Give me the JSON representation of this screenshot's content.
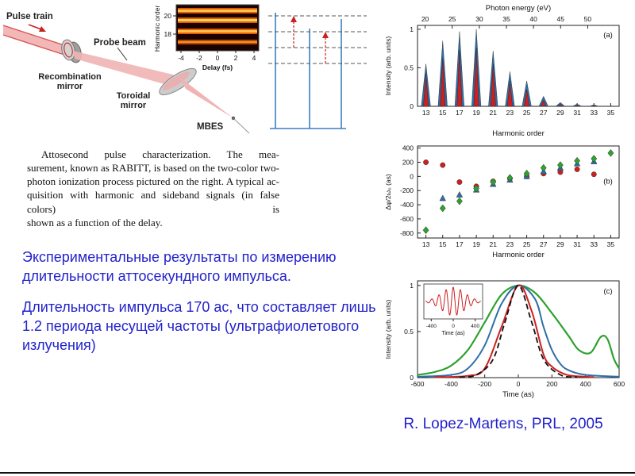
{
  "colors": {
    "text_blue": "#2222cc",
    "chart_blue": "#2e6fa8",
    "chart_red": "#cc2020",
    "chart_green": "#2fa12f",
    "beam_pink": "#f0b4b4",
    "mirror_gray": "#cccccc",
    "level_blue": "#3a7fc1",
    "stripe_orange": "#e05a00"
  },
  "diagram": {
    "labels": {
      "pulse_train": "Pulse train",
      "probe_beam": "Probe beam",
      "recombination_1": "Recombination",
      "recombination_2": "mirror",
      "toroidal_1": "Toroidal",
      "toroidal_2": "mirror",
      "mbes": "MBES"
    },
    "inset": {
      "ylabel": "Harmonic order",
      "xlabel": "Delay (fs)",
      "yticks": [
        "20",
        "18"
      ],
      "xticks": [
        "-4",
        "-2",
        "0",
        "2",
        "4"
      ]
    }
  },
  "caption": {
    "lines": [
      "Attosecond pulse characterization. The mea-",
      "surement, known as RABITT, is based on the two-color two-",
      "photon ionization process pictured on the right. A typical ac-",
      "quisition with harmonic and sideband signals (in false colors) is",
      "shown as a function of the delay."
    ]
  },
  "body_text": {
    "paragraph_1": "Экспериментальные результаты по измерению длительности аттосекундного импульса.",
    "paragraph_2": "Длительность импульса 170 ас, что составляет лишь 1.2 периода несущей частоты (ультрафиолетового излучения)"
  },
  "reference": "R. Lopez-Martens, PRL, 2005",
  "chart_data": [
    {
      "id": "a",
      "type": "bar",
      "label": "(a)",
      "xlabel": "Harmonic order",
      "ylabel": "Intensity (arb. units)",
      "top_xlabel": "Photon energy (eV)",
      "top_ticks": [
        20,
        25,
        30,
        35,
        40,
        45,
        50
      ],
      "ev_per_harmonic": 1.55,
      "xlim": [
        12,
        36
      ],
      "ylim": [
        0,
        1.05
      ],
      "xticks": [
        13,
        15,
        17,
        19,
        21,
        23,
        25,
        27,
        29,
        31,
        33,
        35
      ],
      "yticks": [
        0,
        0.5,
        1
      ],
      "series": [
        {
          "name": "harmonic-peaks",
          "color": "#2e6fa8",
          "peaks": [
            [
              13,
              0.55
            ],
            [
              15,
              0.85
            ],
            [
              17,
              0.97
            ],
            [
              19,
              1.0
            ],
            [
              21,
              0.72
            ],
            [
              23,
              0.45
            ],
            [
              25,
              0.33
            ],
            [
              27,
              0.13
            ],
            [
              29,
              0.05
            ],
            [
              31,
              0.03
            ],
            [
              33,
              0.02
            ]
          ]
        },
        {
          "name": "sideband-peaks",
          "color": "#cc2020",
          "peaks": [
            [
              13,
              0.42
            ],
            [
              15,
              0.63
            ],
            [
              17,
              0.73
            ],
            [
              19,
              0.76
            ],
            [
              21,
              0.55
            ],
            [
              23,
              0.33
            ],
            [
              25,
              0.22
            ],
            [
              27,
              0.08
            ],
            [
              29,
              0.03
            ],
            [
              31,
              0.015
            ],
            [
              33,
              0.01
            ]
          ]
        }
      ]
    },
    {
      "id": "b",
      "type": "scatter",
      "label": "(b)",
      "xlabel": "Harmonic order",
      "ylabel": "Δφ/2ω₀ (as)",
      "xlim": [
        12,
        36
      ],
      "ylim": [
        -870,
        430
      ],
      "xticks": [
        13,
        15,
        17,
        19,
        21,
        23,
        25,
        27,
        29,
        31,
        33,
        35
      ],
      "yticks": [
        -800,
        -600,
        -400,
        -200,
        0,
        200,
        400
      ],
      "series": [
        {
          "name": "red-circles",
          "color": "#cc2020",
          "marker": "circle",
          "points": [
            [
              13,
              200
            ],
            [
              15,
              160
            ],
            [
              17,
              -80
            ],
            [
              19,
              -140
            ],
            [
              21,
              -70
            ],
            [
              23,
              -30
            ],
            [
              25,
              0
            ],
            [
              27,
              40
            ],
            [
              29,
              60
            ],
            [
              31,
              100
            ],
            [
              33,
              30
            ]
          ]
        },
        {
          "name": "blue-triangles",
          "color": "#2e6fa8",
          "marker": "triangle",
          "points": [
            [
              15,
              -310
            ],
            [
              17,
              -260
            ],
            [
              19,
              -190
            ],
            [
              21,
              -110
            ],
            [
              23,
              -50
            ],
            [
              25,
              0
            ],
            [
              27,
              70
            ],
            [
              29,
              120
            ],
            [
              31,
              180
            ],
            [
              33,
              210
            ]
          ]
        },
        {
          "name": "green-diamonds",
          "color": "#2fa12f",
          "marker": "diamond",
          "points": [
            [
              13,
              -760
            ],
            [
              15,
              -450
            ],
            [
              17,
              -350
            ],
            [
              19,
              -170
            ],
            [
              21,
              -80
            ],
            [
              23,
              -20
            ],
            [
              25,
              40
            ],
            [
              27,
              120
            ],
            [
              29,
              160
            ],
            [
              31,
              220
            ],
            [
              33,
              250
            ],
            [
              35,
              330
            ]
          ]
        }
      ]
    },
    {
      "id": "c",
      "type": "line",
      "label": "(c)",
      "xlabel": "Time (as)",
      "ylabel": "Intensity (arb. units)",
      "xlim": [
        -600,
        600
      ],
      "ylim": [
        0,
        1.05
      ],
      "xticks": [
        -600,
        -400,
        -200,
        0,
        200,
        400,
        600
      ],
      "yticks": [
        0,
        0.5,
        1
      ],
      "inset": {
        "xlabel": "Time (as)",
        "xticks": [
          -400,
          0,
          400
        ],
        "color": "#cc2020"
      },
      "series": [
        {
          "name": "green-profile",
          "color": "#2fa12f",
          "width": 2.2,
          "points": [
            [
              -600,
              0.03
            ],
            [
              -500,
              0.06
            ],
            [
              -400,
              0.13
            ],
            [
              -300,
              0.3
            ],
            [
              -200,
              0.6
            ],
            [
              -100,
              0.9
            ],
            [
              0,
              1.0
            ],
            [
              100,
              0.92
            ],
            [
              200,
              0.7
            ],
            [
              300,
              0.45
            ],
            [
              360,
              0.3
            ],
            [
              430,
              0.27
            ],
            [
              490,
              0.44
            ],
            [
              530,
              0.42
            ],
            [
              570,
              0.2
            ],
            [
              600,
              0.1
            ]
          ]
        },
        {
          "name": "blue-profile",
          "color": "#2e6fa8",
          "width": 2,
          "points": [
            [
              -600,
              0.01
            ],
            [
              -400,
              0.03
            ],
            [
              -300,
              0.1
            ],
            [
              -200,
              0.35
            ],
            [
              -100,
              0.8
            ],
            [
              0,
              1.0
            ],
            [
              100,
              0.85
            ],
            [
              150,
              0.55
            ],
            [
              200,
              0.3
            ],
            [
              250,
              0.15
            ],
            [
              300,
              0.08
            ],
            [
              400,
              0.03
            ],
            [
              600,
              0.01
            ]
          ]
        },
        {
          "name": "red-profile",
          "color": "#cc2020",
          "width": 2,
          "points": [
            [
              -500,
              0.005
            ],
            [
              -300,
              0.02
            ],
            [
              -200,
              0.1
            ],
            [
              -100,
              0.55
            ],
            [
              0,
              1.0
            ],
            [
              80,
              0.72
            ],
            [
              150,
              0.25
            ],
            [
              200,
              0.12
            ],
            [
              260,
              0.05
            ],
            [
              320,
              0.02
            ],
            [
              450,
              0.005
            ]
          ]
        },
        {
          "name": "black-dashed-profile",
          "color": "#111111",
          "width": 1.8,
          "dash": "7,4",
          "points": [
            [
              -350,
              0.005
            ],
            [
              -250,
              0.03
            ],
            [
              -150,
              0.2
            ],
            [
              -80,
              0.6
            ],
            [
              0,
              1.0
            ],
            [
              80,
              0.6
            ],
            [
              150,
              0.2
            ],
            [
              250,
              0.03
            ],
            [
              350,
              0.005
            ]
          ]
        }
      ]
    }
  ]
}
